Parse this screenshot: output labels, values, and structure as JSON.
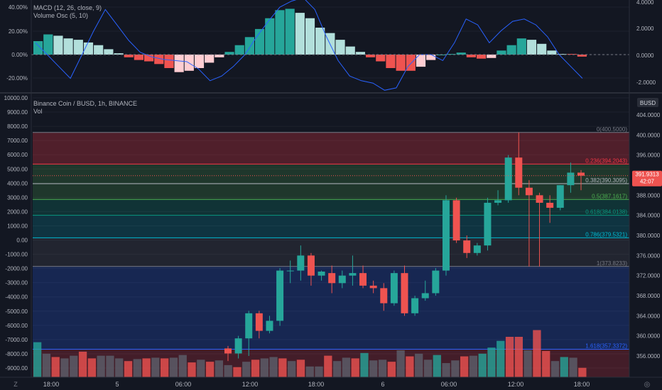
{
  "macd_pane": {
    "legend_macd": "MACD (12, 26, close, 9)",
    "legend_vol_osc": "Volume Osc (5, 10)",
    "left_ticks": [
      "40.00%",
      "20.00%",
      "0.00%",
      "-20.00%"
    ],
    "right_ticks": [
      "4.0000",
      "2.0000",
      "0.0000",
      "-2.0000"
    ],
    "histogram": [
      1.0,
      1.5,
      1.4,
      1.2,
      1.1,
      0.9,
      0.7,
      0.4,
      0.1,
      -0.2,
      -0.4,
      -0.5,
      -0.7,
      -1.0,
      -1.3,
      -1.2,
      -1.0,
      -0.6,
      -0.2,
      0.2,
      0.7,
      1.3,
      1.9,
      2.7,
      3.3,
      3.4,
      3.1,
      2.7,
      2.0,
      1.6,
      1.1,
      0.6,
      0.2,
      -0.2,
      -0.5,
      -1.0,
      -1.2,
      -1.2,
      -0.9,
      -0.4,
      -0.05,
      0.05,
      0.15,
      -0.2,
      -0.3,
      -0.25,
      0.3,
      0.7,
      1.2,
      1.1,
      0.8,
      0.3,
      0.05,
      0.05,
      -0.15
    ],
    "histogram_colors": [
      "#26a69a",
      "#26a69a",
      "#b2dfdb",
      "#b2dfdb",
      "#b2dfdb",
      "#b2dfdb",
      "#b2dfdb",
      "#b2dfdb",
      "#b2dfdb",
      "#ef5350",
      "#ef5350",
      "#ef5350",
      "#ef5350",
      "#ef5350",
      "#ffcdd2",
      "#ffcdd2",
      "#ffcdd2",
      "#ffcdd2",
      "#ffcdd2",
      "#26a69a",
      "#26a69a",
      "#26a69a",
      "#26a69a",
      "#26a69a",
      "#26a69a",
      "#26a69a",
      "#b2dfdb",
      "#b2dfdb",
      "#b2dfdb",
      "#b2dfdb",
      "#b2dfdb",
      "#b2dfdb",
      "#b2dfdb",
      "#ef5350",
      "#ef5350",
      "#ef5350",
      "#ef5350",
      "#ef5350",
      "#ffcdd2",
      "#ffcdd2",
      "#26a69a",
      "#26a69a",
      "#26a69a",
      "#ef5350",
      "#ef5350",
      "#ffcdd2",
      "#26a69a",
      "#26a69a",
      "#26a69a",
      "#b2dfdb",
      "#b2dfdb",
      "#b2dfdb",
      "#b2dfdb",
      "#ef5350",
      "#ef5350"
    ],
    "vol_osc_line": [
      10,
      0,
      -10,
      -20,
      0,
      20,
      38,
      25,
      12,
      2,
      -2,
      -4,
      -5,
      -6,
      -12,
      -22,
      -18,
      -10,
      0,
      15,
      28,
      40,
      45,
      48,
      38,
      15,
      -5,
      -18,
      -22,
      -24,
      -30,
      -28,
      -10,
      0,
      0,
      -5,
      10,
      30,
      25,
      10,
      20,
      28,
      30,
      25,
      15,
      0,
      -10,
      -20
    ],
    "colors": {
      "hist_up_strong": "#26a69a",
      "hist_up_weak": "#b2dfdb",
      "hist_down_strong": "#ef5350",
      "hist_down_weak": "#ffcdd2",
      "vol_osc": "#2962ff"
    }
  },
  "main_pane": {
    "symbol_title": "Binance Coin / BUSD, 1h, BINANCE",
    "volume_label": "Vol",
    "currency_badge": "BUSD",
    "left_ticks": [
      "10000.00",
      "9000.00",
      "8000.00",
      "7000.00",
      "6000.00",
      "5000.00",
      "4000.00",
      "3000.00",
      "2000.00",
      "1000.00",
      "0.00",
      "-1000.00",
      "-2000.00",
      "-3000.00",
      "-4000.00",
      "-5000.00",
      "-6000.00",
      "-7000.00",
      "-8000.00",
      "-9000.00"
    ],
    "right_ticks": [
      "404.0000",
      "400.0000",
      "396.0000",
      "392.0000",
      "388.0000",
      "384.0000",
      "380.0000",
      "376.0000",
      "372.0000",
      "368.0000",
      "364.0000",
      "360.0000",
      "356.0000"
    ],
    "price_label": "391.9313",
    "countdown_label": "42:07",
    "fib_levels": [
      {
        "label": "0(400.5000)",
        "price": 400.5,
        "color": "#787b86"
      },
      {
        "label": "0.236(394.2043)",
        "price": 394.2043,
        "color": "#f23645"
      },
      {
        "label": "0.382(390.3095)",
        "price": 390.3095,
        "color": "#b2b5be"
      },
      {
        "label": "0.5(387.1617)",
        "price": 387.1617,
        "color": "#4caf50"
      },
      {
        "label": "0.618(384.0138)",
        "price": 384.0138,
        "color": "#089981"
      },
      {
        "label": "0.786(379.5321)",
        "price": 379.5321,
        "color": "#00bcd4"
      },
      {
        "label": "1(373.8233)",
        "price": 373.8233,
        "color": "#787b86"
      },
      {
        "label": "1.618(357.3372)",
        "price": 357.3372,
        "color": "#2962ff"
      }
    ],
    "candles": [
      {
        "o": 357.5,
        "h": 358.0,
        "l": 355.0,
        "c": 356.5
      },
      {
        "o": 356.5,
        "h": 360.0,
        "l": 355.5,
        "c": 359.5
      },
      {
        "o": 359.5,
        "h": 365.0,
        "l": 356.0,
        "c": 364.5
      },
      {
        "o": 364.5,
        "h": 365.0,
        "l": 359.5,
        "c": 361.0
      },
      {
        "o": 361.0,
        "h": 364.0,
        "l": 360.5,
        "c": 363.0
      },
      {
        "o": 363.0,
        "h": 373.5,
        "l": 362.0,
        "c": 373.0
      },
      {
        "o": 373.0,
        "h": 375.0,
        "l": 370.5,
        "c": 373.0
      },
      {
        "o": 373.0,
        "h": 378.0,
        "l": 371.0,
        "c": 376.0
      },
      {
        "o": 376.0,
        "h": 376.5,
        "l": 370.0,
        "c": 372.0
      },
      {
        "o": 372.0,
        "h": 373.0,
        "l": 371.0,
        "c": 372.8
      },
      {
        "o": 372.5,
        "h": 374.0,
        "l": 368.5,
        "c": 370.5
      },
      {
        "o": 370.5,
        "h": 373.0,
        "l": 369.5,
        "c": 372.0
      },
      {
        "o": 372.0,
        "h": 376.0,
        "l": 370.0,
        "c": 372.5
      },
      {
        "o": 372.5,
        "h": 374.0,
        "l": 369.5,
        "c": 370.0
      },
      {
        "o": 370.0,
        "h": 371.0,
        "l": 368.5,
        "c": 369.5
      },
      {
        "o": 369.5,
        "h": 370.5,
        "l": 365.0,
        "c": 366.5
      },
      {
        "o": 366.5,
        "h": 373.0,
        "l": 366.0,
        "c": 372.5
      },
      {
        "o": 372.5,
        "h": 374.0,
        "l": 364.0,
        "c": 364.5
      },
      {
        "o": 364.5,
        "h": 368.0,
        "l": 364.0,
        "c": 367.5
      },
      {
        "o": 367.5,
        "h": 371.0,
        "l": 367.0,
        "c": 368.5
      },
      {
        "o": 368.5,
        "h": 373.5,
        "l": 368.0,
        "c": 373.0
      },
      {
        "o": 373.0,
        "h": 388.0,
        "l": 372.0,
        "c": 387.0
      },
      {
        "o": 387.0,
        "h": 387.5,
        "l": 378.5,
        "c": 379.0
      },
      {
        "o": 379.0,
        "h": 380.0,
        "l": 375.5,
        "c": 376.5
      },
      {
        "o": 376.5,
        "h": 378.5,
        "l": 376.0,
        "c": 378.0
      },
      {
        "o": 378.0,
        "h": 387.5,
        "l": 377.0,
        "c": 386.5
      },
      {
        "o": 386.5,
        "h": 389.0,
        "l": 386.0,
        "c": 387.0
      },
      {
        "o": 387.0,
        "h": 396.0,
        "l": 386.5,
        "c": 395.5
      },
      {
        "o": 395.5,
        "h": 400.5,
        "l": 388.0,
        "c": 389.5
      },
      {
        "o": 389.5,
        "h": 391.0,
        "l": 373.8,
        "c": 388.0
      },
      {
        "o": 388.0,
        "h": 388.5,
        "l": 373.8,
        "c": 386.5
      },
      {
        "o": 386.5,
        "h": 388.0,
        "l": 382.5,
        "c": 385.5
      },
      {
        "o": 385.5,
        "h": 390.0,
        "l": 385.0,
        "c": 390.0
      },
      {
        "o": 390.0,
        "h": 394.5,
        "l": 388.5,
        "c": 392.5
      },
      {
        "o": 392.5,
        "h": 393.0,
        "l": 389.0,
        "c": 391.9
      }
    ],
    "volumes": [
      52,
      35,
      30,
      28,
      32,
      38,
      28,
      32,
      32,
      28,
      24,
      27,
      28,
      29,
      28,
      29,
      33,
      22,
      26,
      23,
      25,
      18,
      15,
      23,
      26,
      28,
      30,
      28,
      24,
      26,
      16,
      16,
      32,
      24,
      29,
      28,
      36,
      25,
      26,
      23,
      40,
      31,
      35,
      26,
      33,
      21,
      25,
      31,
      32,
      35,
      44,
      54,
      60,
      60,
      40,
      70,
      39,
      24,
      30,
      29,
      14
    ],
    "volume_colors": [
      "#26a69a",
      "#5d606b",
      "#ef5350",
      "#5d606b",
      "#5d606b",
      "#ef5350",
      "#ef5350",
      "#5d606b",
      "#5d606b",
      "#5d606b",
      "#ef5350",
      "#5d606b",
      "#ef5350",
      "#5d606b",
      "#ef5350",
      "#5d606b",
      "#5d606b",
      "#ef5350",
      "#5d606b",
      "#ef5350",
      "#5d606b",
      "#5d606b",
      "#ef5350",
      "#5d606b",
      "#ef5350",
      "#5d606b",
      "#5d606b",
      "#ef5350",
      "#5d606b",
      "#ef5350",
      "#5d606b",
      "#5d606b",
      "#ef5350",
      "#5d606b",
      "#5d606b",
      "#ef5350",
      "#26a69a",
      "#5d606b",
      "#5d606b",
      "#ef5350",
      "#5d606b",
      "#ef5350",
      "#5d606b",
      "#5d606b",
      "#26a69a",
      "#5d606b",
      "#5d606b",
      "#ef5350",
      "#5d606b",
      "#26a69a",
      "#26a69a",
      "#26a69a",
      "#ef5350",
      "#ef5350",
      "#5d606b",
      "#ef5350",
      "#ef5350",
      "#5d606b",
      "#26a69a",
      "#5d606b",
      "#ef5350"
    ],
    "colors": {
      "up": "#26a69a",
      "down": "#ef5350"
    }
  },
  "time_axis": {
    "labels": [
      "18:00",
      "5",
      "06:00",
      "12:00",
      "18:00",
      "6",
      "06:00",
      "12:00",
      "18:00"
    ],
    "left_button": "Z",
    "right_button": "◎"
  }
}
